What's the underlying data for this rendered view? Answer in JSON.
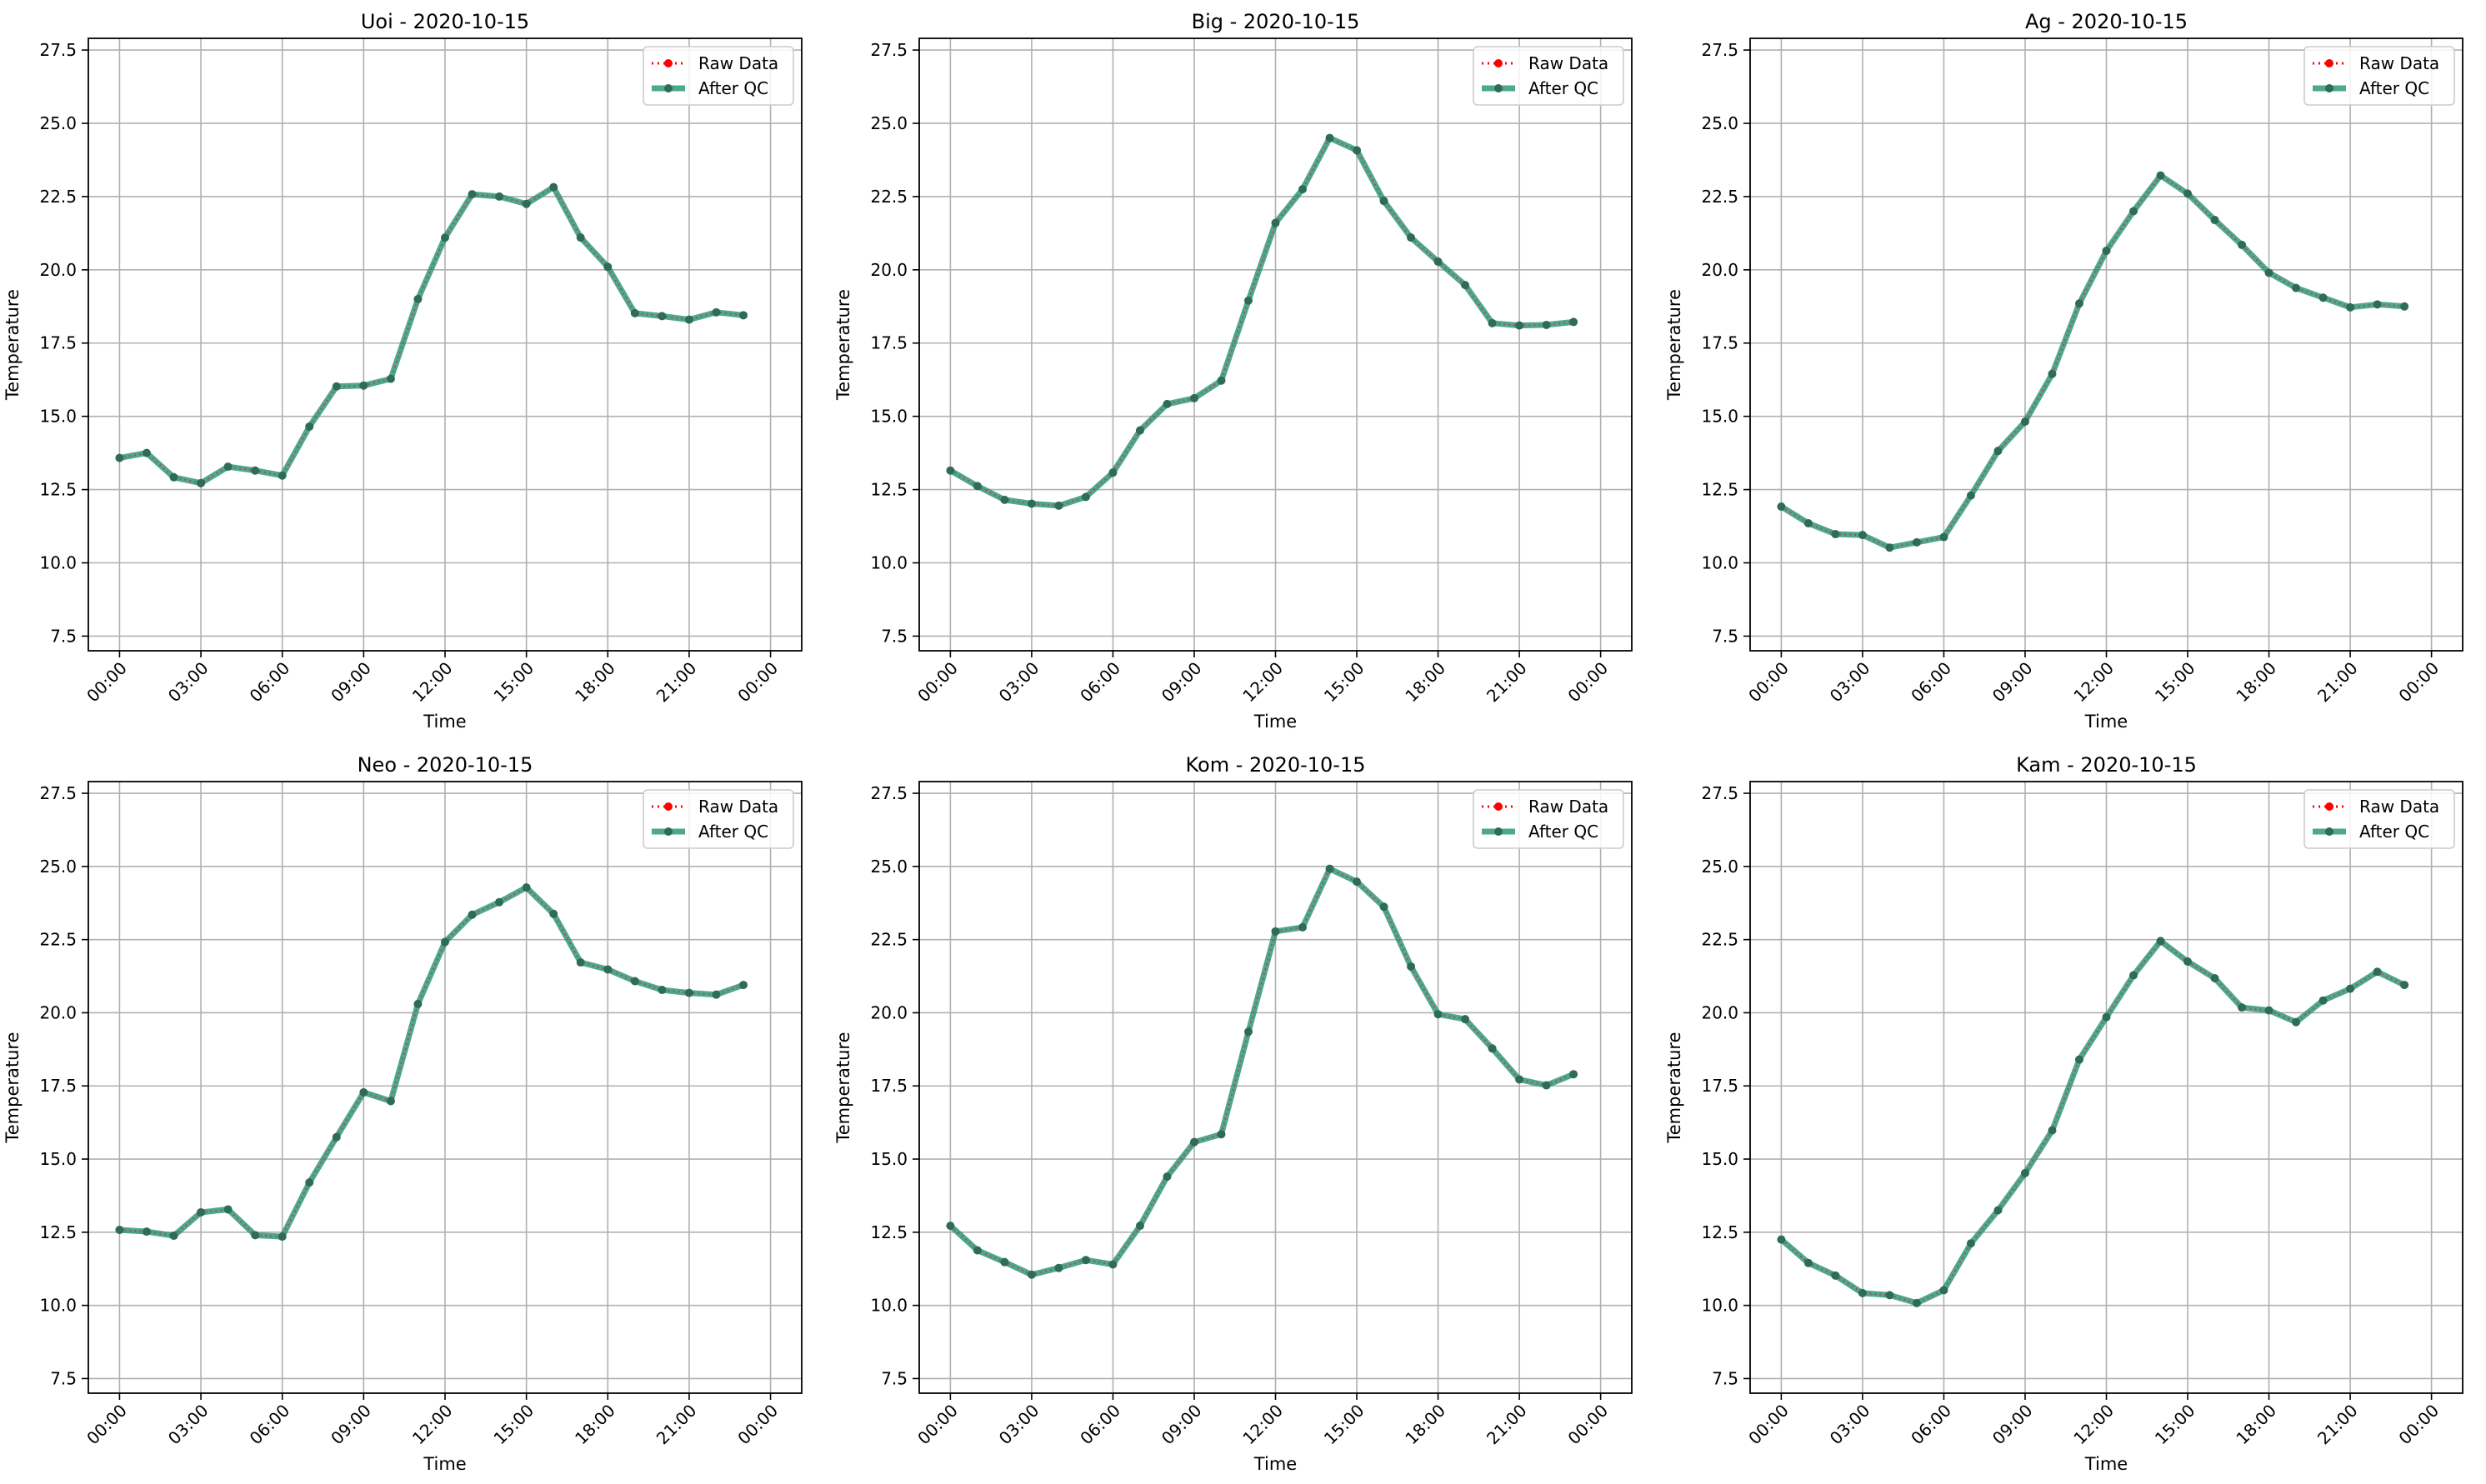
{
  "chart_data": [
    {
      "type": "line",
      "title": "Uoi - 2020-10-15",
      "xlabel": "Time",
      "ylabel": "Temperature",
      "ylim": [
        7.0,
        27.9
      ],
      "yticks": [
        7.5,
        10.0,
        12.5,
        15.0,
        17.5,
        20.0,
        22.5,
        25.0,
        27.5
      ],
      "xticks": [
        "00:00",
        "03:00",
        "06:00",
        "09:00",
        "12:00",
        "15:00",
        "18:00",
        "21:00",
        "00:00"
      ],
      "grid": true,
      "legend": "top-right",
      "x": [
        "00:00",
        "01:00",
        "02:00",
        "03:00",
        "04:00",
        "05:00",
        "06:00",
        "07:00",
        "08:00",
        "09:00",
        "10:00",
        "11:00",
        "12:00",
        "13:00",
        "14:00",
        "15:00",
        "16:00",
        "17:00",
        "18:00",
        "19:00",
        "20:00",
        "21:00",
        "22:00",
        "23:00"
      ],
      "series": [
        {
          "name": "Raw Data",
          "color": "#ff0000",
          "style": "dotted-with-markers",
          "values": [
            13.58,
            13.75,
            12.92,
            12.72,
            13.28,
            13.15,
            12.98,
            14.65,
            16.02,
            16.05,
            16.28,
            19.0,
            21.1,
            22.58,
            22.5,
            22.25,
            22.82,
            21.1,
            20.1,
            18.52,
            18.42,
            18.3,
            18.55,
            18.45
          ]
        },
        {
          "name": "After QC",
          "color": "#2e9a7a",
          "style": "solid-with-markers",
          "values": [
            13.58,
            13.75,
            12.92,
            12.72,
            13.28,
            13.15,
            12.98,
            14.65,
            16.02,
            16.05,
            16.28,
            19.0,
            21.1,
            22.58,
            22.5,
            22.25,
            22.82,
            21.1,
            20.1,
            18.52,
            18.42,
            18.3,
            18.55,
            18.45
          ]
        }
      ]
    },
    {
      "type": "line",
      "title": "Big - 2020-10-15",
      "xlabel": "Time",
      "ylabel": "Temperature",
      "ylim": [
        7.0,
        27.9
      ],
      "yticks": [
        7.5,
        10.0,
        12.5,
        15.0,
        17.5,
        20.0,
        22.5,
        25.0,
        27.5
      ],
      "xticks": [
        "00:00",
        "03:00",
        "06:00",
        "09:00",
        "12:00",
        "15:00",
        "18:00",
        "21:00",
        "00:00"
      ],
      "grid": true,
      "legend": "top-right",
      "x": [
        "00:00",
        "01:00",
        "02:00",
        "03:00",
        "04:00",
        "05:00",
        "06:00",
        "07:00",
        "08:00",
        "09:00",
        "10:00",
        "11:00",
        "12:00",
        "13:00",
        "14:00",
        "15:00",
        "16:00",
        "17:00",
        "18:00",
        "19:00",
        "20:00",
        "21:00",
        "22:00",
        "23:00"
      ],
      "series": [
        {
          "name": "Raw Data",
          "color": "#ff0000",
          "style": "dotted-with-markers",
          "values": [
            13.15,
            12.62,
            12.15,
            12.02,
            11.95,
            12.25,
            13.08,
            14.52,
            15.42,
            15.62,
            16.22,
            18.95,
            21.6,
            22.75,
            24.5,
            24.08,
            22.35,
            21.1,
            20.28,
            19.48,
            18.18,
            18.1,
            18.12,
            18.22
          ]
        },
        {
          "name": "After QC",
          "color": "#2e9a7a",
          "style": "solid-with-markers",
          "values": [
            13.15,
            12.62,
            12.15,
            12.02,
            11.95,
            12.25,
            13.08,
            14.52,
            15.42,
            15.62,
            16.22,
            18.95,
            21.6,
            22.75,
            24.5,
            24.08,
            22.35,
            21.1,
            20.28,
            19.48,
            18.18,
            18.1,
            18.12,
            18.22
          ]
        }
      ]
    },
    {
      "type": "line",
      "title": "Ag - 2020-10-15",
      "xlabel": "Time",
      "ylabel": "Temperature",
      "ylim": [
        7.0,
        27.9
      ],
      "yticks": [
        7.5,
        10.0,
        12.5,
        15.0,
        17.5,
        20.0,
        22.5,
        25.0,
        27.5
      ],
      "xticks": [
        "00:00",
        "03:00",
        "06:00",
        "09:00",
        "12:00",
        "15:00",
        "18:00",
        "21:00",
        "00:00"
      ],
      "grid": true,
      "legend": "top-right",
      "x": [
        "00:00",
        "01:00",
        "02:00",
        "03:00",
        "04:00",
        "05:00",
        "06:00",
        "07:00",
        "08:00",
        "09:00",
        "10:00",
        "11:00",
        "12:00",
        "13:00",
        "14:00",
        "15:00",
        "16:00",
        "17:00",
        "18:00",
        "19:00",
        "20:00",
        "21:00",
        "22:00",
        "23:00"
      ],
      "series": [
        {
          "name": "Raw Data",
          "color": "#ff0000",
          "style": "dotted-with-markers",
          "values": [
            11.92,
            11.35,
            10.98,
            10.95,
            10.52,
            10.7,
            10.88,
            12.3,
            13.82,
            14.82,
            16.45,
            18.85,
            20.65,
            22.0,
            23.22,
            22.6,
            21.7,
            20.85,
            19.9,
            19.38,
            19.05,
            18.72,
            18.82,
            18.75
          ]
        },
        {
          "name": "After QC",
          "color": "#2e9a7a",
          "style": "solid-with-markers",
          "values": [
            11.92,
            11.35,
            10.98,
            10.95,
            10.52,
            10.7,
            10.88,
            12.3,
            13.82,
            14.82,
            16.45,
            18.85,
            20.65,
            22.0,
            23.22,
            22.6,
            21.7,
            20.85,
            19.9,
            19.38,
            19.05,
            18.72,
            18.82,
            18.75
          ]
        }
      ]
    },
    {
      "type": "line",
      "title": "Neo - 2020-10-15",
      "xlabel": "Time",
      "ylabel": "Temperature",
      "ylim": [
        7.0,
        27.9
      ],
      "yticks": [
        7.5,
        10.0,
        12.5,
        15.0,
        17.5,
        20.0,
        22.5,
        25.0,
        27.5
      ],
      "xticks": [
        "00:00",
        "03:00",
        "06:00",
        "09:00",
        "12:00",
        "15:00",
        "18:00",
        "21:00",
        "00:00"
      ],
      "grid": true,
      "legend": "top-right",
      "x": [
        "00:00",
        "01:00",
        "02:00",
        "03:00",
        "04:00",
        "05:00",
        "06:00",
        "07:00",
        "08:00",
        "09:00",
        "10:00",
        "11:00",
        "12:00",
        "13:00",
        "14:00",
        "15:00",
        "16:00",
        "17:00",
        "18:00",
        "19:00",
        "20:00",
        "21:00",
        "22:00",
        "23:00"
      ],
      "series": [
        {
          "name": "Raw Data",
          "color": "#ff0000",
          "style": "dotted-with-markers",
          "values": [
            12.58,
            12.52,
            12.38,
            13.18,
            13.28,
            12.4,
            12.35,
            14.2,
            15.75,
            17.28,
            16.98,
            20.3,
            22.42,
            23.35,
            23.78,
            24.28,
            23.38,
            21.72,
            21.48,
            21.08,
            20.78,
            20.68,
            20.62,
            20.95
          ]
        },
        {
          "name": "After QC",
          "color": "#2e9a7a",
          "style": "solid-with-markers",
          "values": [
            12.58,
            12.52,
            12.38,
            13.18,
            13.28,
            12.4,
            12.35,
            14.2,
            15.75,
            17.28,
            16.98,
            20.3,
            22.42,
            23.35,
            23.78,
            24.28,
            23.38,
            21.72,
            21.48,
            21.08,
            20.78,
            20.68,
            20.62,
            20.95
          ]
        }
      ]
    },
    {
      "type": "line",
      "title": "Kom - 2020-10-15",
      "xlabel": "Time",
      "ylabel": "Temperature",
      "ylim": [
        7.0,
        27.9
      ],
      "yticks": [
        7.5,
        10.0,
        12.5,
        15.0,
        17.5,
        20.0,
        22.5,
        25.0,
        27.5
      ],
      "xticks": [
        "00:00",
        "03:00",
        "06:00",
        "09:00",
        "12:00",
        "15:00",
        "18:00",
        "21:00",
        "00:00"
      ],
      "grid": true,
      "legend": "top-right",
      "x": [
        "00:00",
        "01:00",
        "02:00",
        "03:00",
        "04:00",
        "05:00",
        "06:00",
        "07:00",
        "08:00",
        "09:00",
        "10:00",
        "11:00",
        "12:00",
        "13:00",
        "14:00",
        "15:00",
        "16:00",
        "17:00",
        "18:00",
        "19:00",
        "20:00",
        "21:00",
        "22:00",
        "23:00"
      ],
      "series": [
        {
          "name": "Raw Data",
          "color": "#ff0000",
          "style": "dotted-with-markers",
          "values": [
            12.72,
            11.88,
            11.48,
            11.05,
            11.28,
            11.55,
            11.4,
            12.72,
            14.4,
            15.58,
            15.85,
            19.35,
            22.78,
            22.92,
            24.92,
            24.48,
            23.62,
            21.58,
            19.95,
            19.78,
            18.78,
            17.72,
            17.52,
            17.9
          ]
        },
        {
          "name": "After QC",
          "color": "#2e9a7a",
          "style": "solid-with-markers",
          "values": [
            12.72,
            11.88,
            11.48,
            11.05,
            11.28,
            11.55,
            11.4,
            12.72,
            14.4,
            15.58,
            15.85,
            19.35,
            22.78,
            22.92,
            24.92,
            24.48,
            23.62,
            21.58,
            19.95,
            19.78,
            18.78,
            17.72,
            17.52,
            17.9
          ]
        }
      ]
    },
    {
      "type": "line",
      "title": "Kam - 2020-10-15",
      "xlabel": "Time",
      "ylabel": "Temperature",
      "ylim": [
        7.0,
        27.9
      ],
      "yticks": [
        7.5,
        10.0,
        12.5,
        15.0,
        17.5,
        20.0,
        22.5,
        25.0,
        27.5
      ],
      "xticks": [
        "00:00",
        "03:00",
        "06:00",
        "09:00",
        "12:00",
        "15:00",
        "18:00",
        "21:00",
        "00:00"
      ],
      "grid": true,
      "legend": "top-right",
      "x": [
        "00:00",
        "01:00",
        "02:00",
        "03:00",
        "04:00",
        "05:00",
        "06:00",
        "07:00",
        "08:00",
        "09:00",
        "10:00",
        "11:00",
        "12:00",
        "13:00",
        "14:00",
        "15:00",
        "16:00",
        "17:00",
        "18:00",
        "19:00",
        "20:00",
        "21:00",
        "22:00",
        "23:00"
      ],
      "series": [
        {
          "name": "Raw Data",
          "color": "#ff0000",
          "style": "dotted-with-markers",
          "values": [
            12.25,
            11.45,
            11.02,
            10.42,
            10.35,
            10.08,
            10.52,
            12.12,
            13.25,
            14.52,
            15.98,
            18.4,
            19.85,
            21.28,
            22.45,
            21.75,
            21.18,
            20.18,
            20.08,
            19.68,
            20.42,
            20.82,
            21.4,
            20.95
          ]
        },
        {
          "name": "After QC",
          "color": "#2e9a7a",
          "style": "solid-with-markers",
          "values": [
            12.25,
            11.45,
            11.02,
            10.42,
            10.35,
            10.08,
            10.52,
            12.12,
            13.25,
            14.52,
            15.98,
            18.4,
            19.85,
            21.28,
            22.45,
            21.75,
            21.18,
            20.18,
            20.08,
            19.68,
            20.42,
            20.82,
            21.4,
            20.95
          ]
        }
      ]
    }
  ]
}
